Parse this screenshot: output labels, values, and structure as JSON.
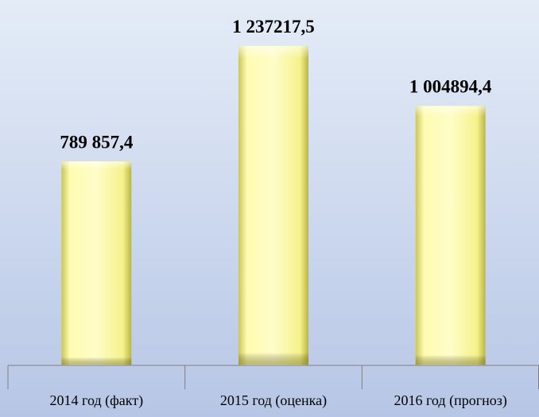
{
  "chart_data": {
    "type": "bar",
    "categories": [
      "2014 год (факт)",
      "2015 год (оценка)",
      "2016 год (прогноз)"
    ],
    "values": [
      789857.4,
      1237217.5,
      1004894.4
    ],
    "value_labels": [
      "789 857,4",
      "1 237217,5",
      "1 004894,4"
    ],
    "color": "#fbf99a",
    "ylim": [
      0,
      1400000
    ]
  }
}
